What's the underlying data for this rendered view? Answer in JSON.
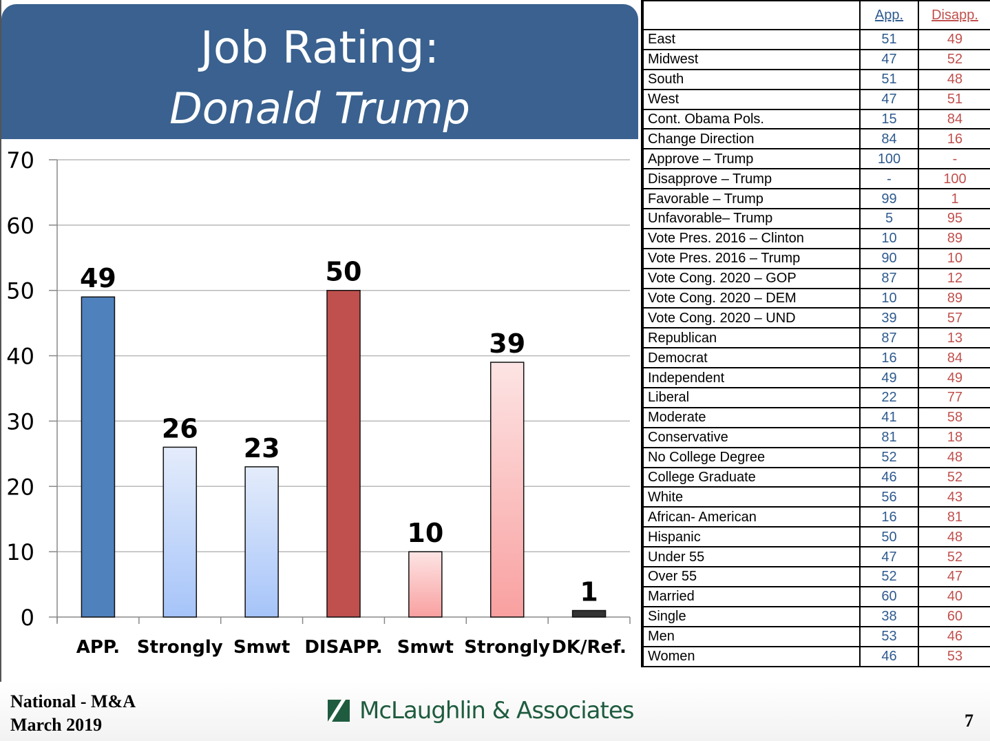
{
  "header": {
    "title_line1": "Job Rating:",
    "title_line2": "Donald Trump"
  },
  "colors": {
    "title_bg": "#3a618f",
    "approve": "#4f81bd",
    "approve_light_top": "#e4ecfb",
    "approve_light_bottom": "#a6c4f9",
    "disapprove": "#c0504d",
    "disapprove_light_top": "#fde4e4",
    "disapprove_light_bottom": "#f9a0a0",
    "dk": "#333333",
    "table_app": "#2e5a8e",
    "table_dis": "#c0504d",
    "logo": "#1f5c3f"
  },
  "chart_data": {
    "type": "bar",
    "title": "Job Rating: Donald Trump",
    "xlabel": "",
    "ylabel": "",
    "categories": [
      "APP.",
      "Strongly",
      "Smwt",
      "DISAPP.",
      "Smwt",
      "Strongly",
      "DK/Ref."
    ],
    "values": [
      49,
      26,
      23,
      50,
      10,
      39,
      1
    ],
    "fills": [
      "approve",
      "approve-light",
      "approve-light",
      "disapprove",
      "disapprove-light",
      "disapprove-light",
      "dk"
    ],
    "data_labels": [
      "49",
      "26",
      "23",
      "50",
      "10",
      "39",
      "1"
    ],
    "ylim": [
      0,
      70
    ],
    "yticks": [
      0,
      10,
      20,
      30,
      40,
      50,
      60,
      70
    ],
    "grid": true,
    "legend": "none"
  },
  "crosstab": {
    "columns": [
      "App.",
      "Disapp."
    ],
    "rows": [
      {
        "label": "East",
        "app": "51",
        "dis": "49"
      },
      {
        "label": "Midwest",
        "app": "47",
        "dis": "52"
      },
      {
        "label": "South",
        "app": "51",
        "dis": "48"
      },
      {
        "label": "West",
        "app": "47",
        "dis": "51"
      },
      {
        "label": "Cont. Obama Pols.",
        "app": "15",
        "dis": "84"
      },
      {
        "label": "Change Direction",
        "app": "84",
        "dis": "16"
      },
      {
        "label": "Approve – Trump",
        "app": "100",
        "dis": "-"
      },
      {
        "label": "Disapprove – Trump",
        "app": "-",
        "dis": "100"
      },
      {
        "label": "Favorable – Trump",
        "app": "99",
        "dis": "1"
      },
      {
        "label": "Unfavorable– Trump",
        "app": "5",
        "dis": "95"
      },
      {
        "label": "Vote Pres. 2016 – Clinton",
        "app": "10",
        "dis": "89"
      },
      {
        "label": "Vote Pres. 2016 – Trump",
        "app": "90",
        "dis": "10"
      },
      {
        "label": "Vote Cong. 2020 – GOP",
        "app": "87",
        "dis": "12"
      },
      {
        "label": "Vote Cong. 2020 – DEM",
        "app": "10",
        "dis": "89"
      },
      {
        "label": "Vote Cong. 2020 – UND",
        "app": "39",
        "dis": "57"
      },
      {
        "label": "Republican",
        "app": "87",
        "dis": "13"
      },
      {
        "label": "Democrat",
        "app": "16",
        "dis": "84"
      },
      {
        "label": "Independent",
        "app": "49",
        "dis": "49"
      },
      {
        "label": "Liberal",
        "app": "22",
        "dis": "77"
      },
      {
        "label": "Moderate",
        "app": "41",
        "dis": "58"
      },
      {
        "label": "Conservative",
        "app": "81",
        "dis": "18"
      },
      {
        "label": "No College Degree",
        "app": "52",
        "dis": "48"
      },
      {
        "label": "College Graduate",
        "app": "46",
        "dis": "52"
      },
      {
        "label": "White",
        "app": "56",
        "dis": "43"
      },
      {
        "label": "African- American",
        "app": "16",
        "dis": "81"
      },
      {
        "label": "Hispanic",
        "app": "50",
        "dis": "48"
      },
      {
        "label": "Under 55",
        "app": "47",
        "dis": "52"
      },
      {
        "label": "Over 55",
        "app": "52",
        "dis": "47"
      },
      {
        "label": "Married",
        "app": "60",
        "dis": "40"
      },
      {
        "label": "Single",
        "app": "38",
        "dis": "60"
      },
      {
        "label": "Men",
        "app": "53",
        "dis": "46"
      },
      {
        "label": "Women",
        "app": "46",
        "dis": "53"
      }
    ]
  },
  "footer": {
    "source_line1": "National - M&A",
    "source_line2": "March 2019",
    "logo_text": "McLaughlin & Associates",
    "logo_icon": "slash-square-logo-icon",
    "page_number": "7"
  }
}
